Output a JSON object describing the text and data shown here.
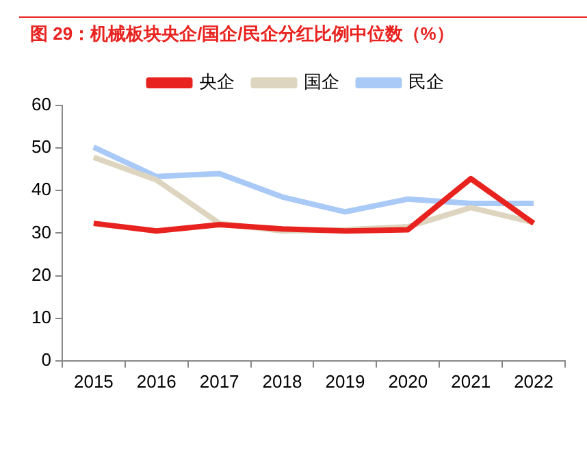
{
  "chart_data": {
    "type": "line",
    "title": "图 29：机械板块央企/国企/民企分红比例中位数（%）",
    "categories": [
      "2015",
      "2016",
      "2017",
      "2018",
      "2019",
      "2020",
      "2021",
      "2022"
    ],
    "series": [
      {
        "name": "央企",
        "color": "#e8231f",
        "values": [
          32.3,
          30.5,
          32,
          31,
          30.5,
          30.8,
          42.8,
          32.3
        ]
      },
      {
        "name": "国企",
        "color": "#ddd5bf",
        "values": [
          47.8,
          42.5,
          32.3,
          30.5,
          30.8,
          31.5,
          36,
          32.5
        ]
      },
      {
        "name": "民企",
        "color": "#a9c9f7",
        "values": [
          50.2,
          43.3,
          44,
          38.5,
          35,
          38,
          37,
          37
        ]
      }
    ],
    "ylim": [
      0,
      60
    ],
    "yticks": [
      0,
      10,
      20,
      30,
      40,
      50,
      60
    ],
    "grid": false,
    "legend": "top",
    "marker": "none",
    "line_style": "solid"
  }
}
